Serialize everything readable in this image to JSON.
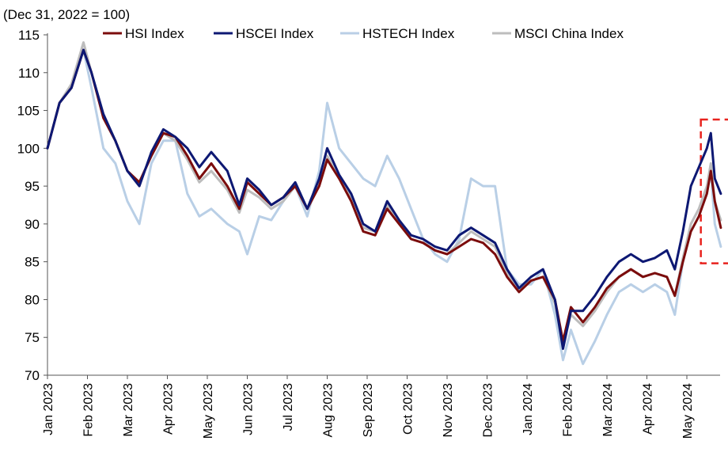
{
  "chart_data": {
    "type": "line",
    "subtitle": "(Dec 31, 2022 = 100)",
    "ylim": [
      70,
      115
    ],
    "yticks": [
      "70",
      "75",
      "80",
      "85",
      "90",
      "95",
      "100",
      "105",
      "110",
      "115"
    ],
    "xticks": [
      "Jan 2023",
      "Feb 2023",
      "Mar 2023",
      "Apr 2023",
      "May 2023",
      "Jun 2023",
      "Jul 2023",
      "Aug 2023",
      "Sep 2023",
      "Oct 2023",
      "Nov 2023",
      "Dec 2023",
      "Jan 2024",
      "Feb 2024",
      "Mar 2024",
      "Apr 2024",
      "May 2024"
    ],
    "x_range": [
      0,
      16.85
    ],
    "legend_position": "top",
    "highlight": {
      "x_from": 16.35,
      "x_to": 17.15,
      "y_from": 84.8,
      "y_to": 103.8,
      "color": "#e8231e"
    },
    "series": [
      {
        "name": "HSI Index",
        "color": "#7b0c0c",
        "points": [
          [
            0,
            100
          ],
          [
            0.3,
            106
          ],
          [
            0.6,
            108
          ],
          [
            0.9,
            113
          ],
          [
            1.1,
            110
          ],
          [
            1.4,
            104
          ],
          [
            1.7,
            101
          ],
          [
            2.0,
            97
          ],
          [
            2.3,
            95.5
          ],
          [
            2.6,
            99
          ],
          [
            2.9,
            102
          ],
          [
            3.2,
            101.5
          ],
          [
            3.5,
            99
          ],
          [
            3.8,
            96
          ],
          [
            4.1,
            98
          ],
          [
            4.5,
            95
          ],
          [
            4.8,
            92
          ],
          [
            5.0,
            95.5
          ],
          [
            5.3,
            94
          ],
          [
            5.6,
            92.5
          ],
          [
            5.9,
            93.5
          ],
          [
            6.2,
            95
          ],
          [
            6.5,
            92
          ],
          [
            6.8,
            95
          ],
          [
            7.0,
            98.5
          ],
          [
            7.3,
            96
          ],
          [
            7.6,
            93
          ],
          [
            7.9,
            89
          ],
          [
            8.2,
            88.5
          ],
          [
            8.5,
            92
          ],
          [
            8.8,
            90
          ],
          [
            9.1,
            88
          ],
          [
            9.4,
            87.5
          ],
          [
            9.7,
            86.5
          ],
          [
            10.0,
            86
          ],
          [
            10.3,
            87
          ],
          [
            10.6,
            88
          ],
          [
            10.9,
            87.5
          ],
          [
            11.2,
            86
          ],
          [
            11.5,
            83
          ],
          [
            11.8,
            81
          ],
          [
            12.1,
            82.5
          ],
          [
            12.4,
            83
          ],
          [
            12.7,
            80
          ],
          [
            12.9,
            74.5
          ],
          [
            13.1,
            79
          ],
          [
            13.4,
            77
          ],
          [
            13.7,
            79
          ],
          [
            14.0,
            81.5
          ],
          [
            14.3,
            83
          ],
          [
            14.6,
            84
          ],
          [
            14.9,
            83
          ],
          [
            15.2,
            83.5
          ],
          [
            15.5,
            83
          ],
          [
            15.7,
            80.5
          ],
          [
            15.9,
            85
          ],
          [
            16.1,
            89
          ],
          [
            16.3,
            91
          ],
          [
            16.5,
            94
          ],
          [
            16.6,
            97
          ],
          [
            16.7,
            93
          ],
          [
            16.85,
            89.5
          ]
        ]
      },
      {
        "name": "HSCEI Index",
        "color": "#0d1873",
        "points": [
          [
            0,
            100
          ],
          [
            0.3,
            106
          ],
          [
            0.6,
            108
          ],
          [
            0.9,
            113
          ],
          [
            1.1,
            110
          ],
          [
            1.4,
            104.5
          ],
          [
            1.7,
            101
          ],
          [
            2.0,
            97
          ],
          [
            2.3,
            95
          ],
          [
            2.6,
            99.5
          ],
          [
            2.9,
            102.5
          ],
          [
            3.2,
            101.5
          ],
          [
            3.5,
            100
          ],
          [
            3.8,
            97.5
          ],
          [
            4.1,
            99.5
          ],
          [
            4.5,
            97
          ],
          [
            4.8,
            92.5
          ],
          [
            5.0,
            96
          ],
          [
            5.3,
            94.5
          ],
          [
            5.6,
            92.5
          ],
          [
            5.9,
            93.5
          ],
          [
            6.2,
            95.5
          ],
          [
            6.5,
            92
          ],
          [
            6.8,
            96
          ],
          [
            7.0,
            100
          ],
          [
            7.3,
            96.5
          ],
          [
            7.6,
            94
          ],
          [
            7.9,
            90
          ],
          [
            8.2,
            89
          ],
          [
            8.5,
            93
          ],
          [
            8.8,
            90.5
          ],
          [
            9.1,
            88.5
          ],
          [
            9.4,
            88
          ],
          [
            9.7,
            87
          ],
          [
            10.0,
            86.5
          ],
          [
            10.3,
            88.5
          ],
          [
            10.6,
            89.5
          ],
          [
            10.9,
            88.5
          ],
          [
            11.2,
            87.5
          ],
          [
            11.5,
            84
          ],
          [
            11.8,
            81.5
          ],
          [
            12.1,
            83
          ],
          [
            12.4,
            84
          ],
          [
            12.7,
            80
          ],
          [
            12.9,
            73.5
          ],
          [
            13.1,
            78.5
          ],
          [
            13.4,
            78.5
          ],
          [
            13.7,
            80.5
          ],
          [
            14.0,
            83
          ],
          [
            14.3,
            85
          ],
          [
            14.6,
            86
          ],
          [
            14.9,
            85
          ],
          [
            15.2,
            85.5
          ],
          [
            15.5,
            86.5
          ],
          [
            15.7,
            84
          ],
          [
            15.9,
            89
          ],
          [
            16.1,
            95
          ],
          [
            16.3,
            97.5
          ],
          [
            16.5,
            100
          ],
          [
            16.6,
            102
          ],
          [
            16.7,
            96
          ],
          [
            16.85,
            94
          ]
        ]
      },
      {
        "name": "HSTECH Index",
        "color": "#b9cfe6",
        "points": [
          [
            0,
            100
          ],
          [
            0.3,
            106
          ],
          [
            0.6,
            108
          ],
          [
            0.9,
            113
          ],
          [
            1.1,
            108
          ],
          [
            1.4,
            100
          ],
          [
            1.7,
            98
          ],
          [
            2.0,
            93
          ],
          [
            2.3,
            90
          ],
          [
            2.6,
            98
          ],
          [
            2.9,
            101
          ],
          [
            3.2,
            101
          ],
          [
            3.5,
            94
          ],
          [
            3.8,
            91
          ],
          [
            4.1,
            92
          ],
          [
            4.5,
            90
          ],
          [
            4.8,
            89
          ],
          [
            5.0,
            86
          ],
          [
            5.3,
            91
          ],
          [
            5.6,
            90.5
          ],
          [
            5.9,
            93
          ],
          [
            6.2,
            95
          ],
          [
            6.5,
            91
          ],
          [
            6.8,
            97
          ],
          [
            7.0,
            106
          ],
          [
            7.3,
            100
          ],
          [
            7.6,
            98
          ],
          [
            7.9,
            96
          ],
          [
            8.2,
            95
          ],
          [
            8.5,
            99
          ],
          [
            8.8,
            96
          ],
          [
            9.1,
            92
          ],
          [
            9.4,
            88
          ],
          [
            9.7,
            86
          ],
          [
            10.0,
            85
          ],
          [
            10.3,
            88
          ],
          [
            10.6,
            96
          ],
          [
            10.9,
            95
          ],
          [
            11.2,
            95
          ],
          [
            11.5,
            84
          ],
          [
            11.8,
            82
          ],
          [
            12.1,
            82
          ],
          [
            12.4,
            84
          ],
          [
            12.7,
            78
          ],
          [
            12.9,
            72
          ],
          [
            13.1,
            76
          ],
          [
            13.4,
            71.5
          ],
          [
            13.7,
            74.5
          ],
          [
            14.0,
            78
          ],
          [
            14.3,
            81
          ],
          [
            14.6,
            82
          ],
          [
            14.9,
            81
          ],
          [
            15.2,
            82
          ],
          [
            15.5,
            81
          ],
          [
            15.7,
            78
          ],
          [
            15.9,
            85
          ],
          [
            16.1,
            90
          ],
          [
            16.3,
            92
          ],
          [
            16.5,
            94
          ],
          [
            16.6,
            97
          ],
          [
            16.7,
            90
          ],
          [
            16.85,
            87
          ]
        ]
      },
      {
        "name": "MSCI China Index",
        "color": "#bdbdbd",
        "points": [
          [
            0,
            100
          ],
          [
            0.3,
            106
          ],
          [
            0.6,
            108.5
          ],
          [
            0.9,
            114
          ],
          [
            1.1,
            110
          ],
          [
            1.4,
            104
          ],
          [
            1.7,
            101
          ],
          [
            2.0,
            97
          ],
          [
            2.3,
            95.5
          ],
          [
            2.6,
            99
          ],
          [
            2.9,
            102
          ],
          [
            3.2,
            101
          ],
          [
            3.5,
            98.5
          ],
          [
            3.8,
            95.5
          ],
          [
            4.1,
            97
          ],
          [
            4.5,
            94.5
          ],
          [
            4.8,
            91.5
          ],
          [
            5.0,
            94.5
          ],
          [
            5.3,
            93.5
          ],
          [
            5.6,
            92
          ],
          [
            5.9,
            93
          ],
          [
            6.2,
            95
          ],
          [
            6.5,
            92
          ],
          [
            6.8,
            95.5
          ],
          [
            7.0,
            99
          ],
          [
            7.3,
            96
          ],
          [
            7.6,
            93.5
          ],
          [
            7.9,
            89.5
          ],
          [
            8.2,
            89
          ],
          [
            8.5,
            92.5
          ],
          [
            8.8,
            90
          ],
          [
            9.1,
            88
          ],
          [
            9.4,
            87.5
          ],
          [
            9.7,
            86.5
          ],
          [
            10.0,
            86
          ],
          [
            10.3,
            87.5
          ],
          [
            10.6,
            89
          ],
          [
            10.9,
            88
          ],
          [
            11.2,
            87
          ],
          [
            11.5,
            83.5
          ],
          [
            11.8,
            81.5
          ],
          [
            12.1,
            82.5
          ],
          [
            12.4,
            83
          ],
          [
            12.7,
            79.5
          ],
          [
            12.9,
            74
          ],
          [
            13.1,
            78
          ],
          [
            13.4,
            76.5
          ],
          [
            13.7,
            78.5
          ],
          [
            14.0,
            81
          ],
          [
            14.3,
            83
          ],
          [
            14.6,
            84
          ],
          [
            14.9,
            83
          ],
          [
            15.2,
            83.5
          ],
          [
            15.5,
            83
          ],
          [
            15.7,
            80.5
          ],
          [
            15.9,
            85.5
          ],
          [
            16.1,
            90
          ],
          [
            16.3,
            92
          ],
          [
            16.5,
            95
          ],
          [
            16.6,
            98
          ],
          [
            16.7,
            93
          ],
          [
            16.85,
            90.5
          ]
        ]
      }
    ]
  }
}
